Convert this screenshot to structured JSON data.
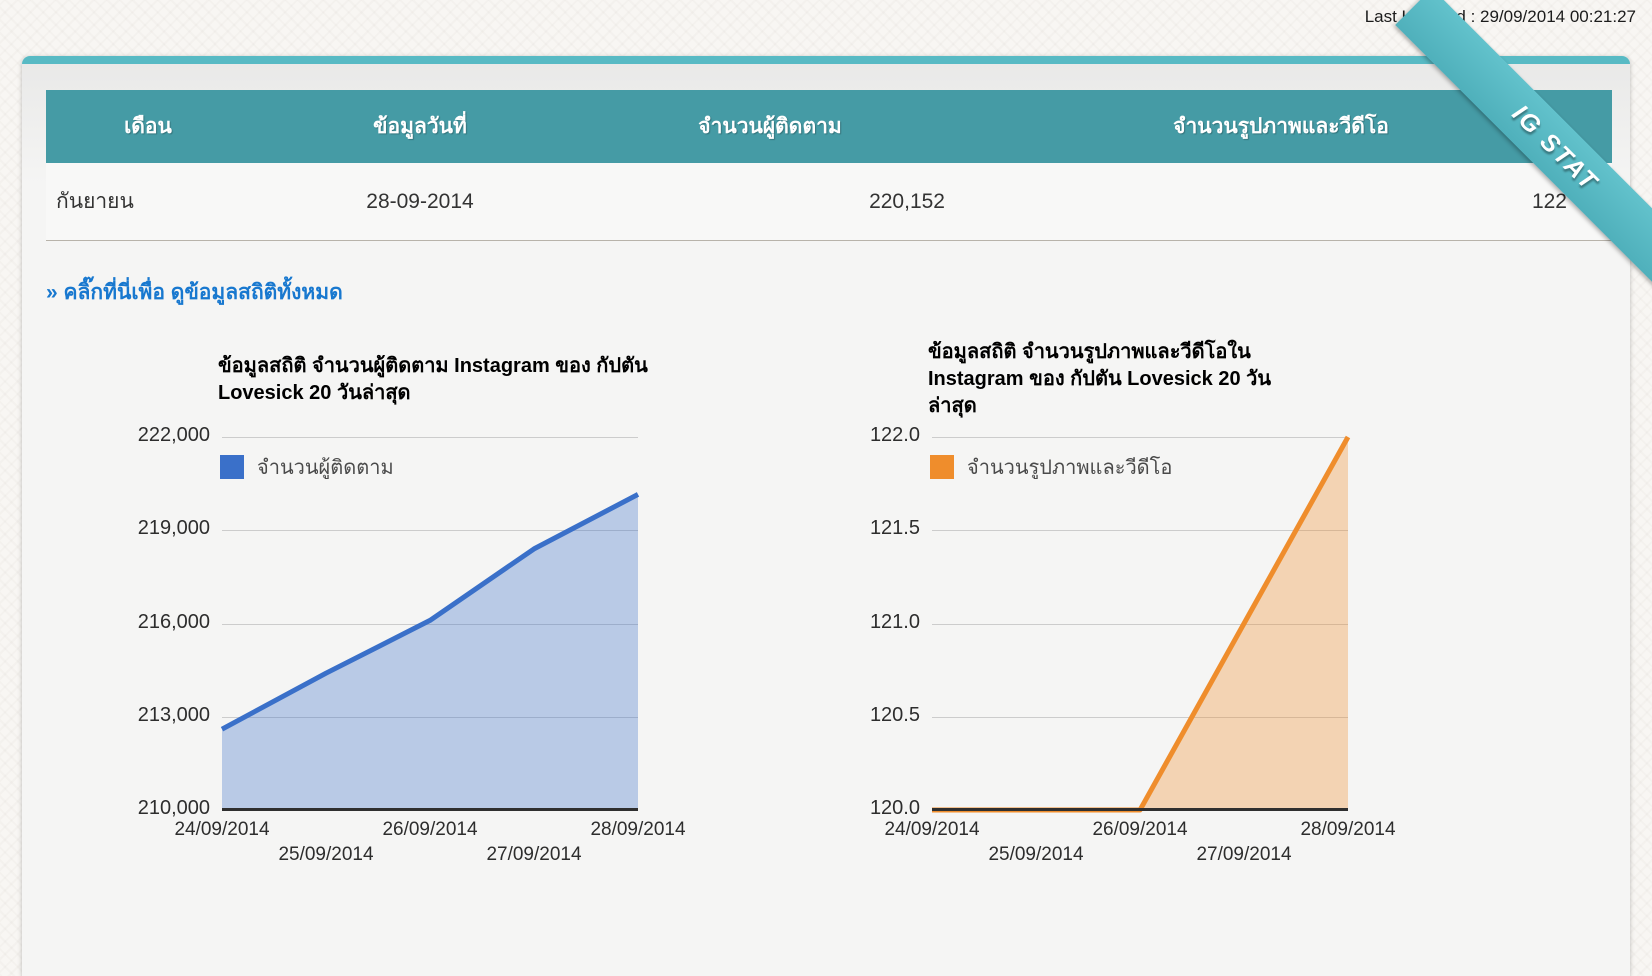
{
  "header": {
    "last_updated": "Last Updated : 29/09/2014 00:21:27"
  },
  "ribbon": {
    "label": "IG STAT"
  },
  "table": {
    "headers": [
      "เดือน",
      "ข้อมูลวันที่",
      "จำนวนผู้ติดตาม",
      "จำนวนรูปภาพและวีดีโอ"
    ],
    "row": {
      "month": "กันยายน",
      "date": "28-09-2014",
      "followers": "220,152",
      "media_count": "122"
    }
  },
  "link": {
    "label": "» คลิ๊กที่นี่เพื่อ ดูข้อมูลสถิติทั้งหมด"
  },
  "colors": {
    "accent_teal": "#459ba5",
    "ribbon_teal": "#58bac4",
    "link_blue": "#1878cf",
    "followers_line": "#3a70c9",
    "media_line": "#ef8d2c"
  },
  "chart_data": [
    {
      "type": "area",
      "title": "ข้อมูลสถิติ จำนวนผู้ติดตาม Instagram ของ กัปตัน Lovesick 20 วันล่าสุด",
      "legend": "จำนวนผู้ติดตาม",
      "legend_position": "top-left",
      "grid": true,
      "x": [
        "24/09/2014",
        "25/09/2014",
        "26/09/2014",
        "27/09/2014",
        "28/09/2014"
      ],
      "values": [
        212600,
        214400,
        216100,
        218400,
        220152
      ],
      "ylim": [
        210000,
        222000
      ],
      "yticks": [
        210000,
        213000,
        216000,
        219000,
        222000
      ],
      "ytick_labels": [
        "210,000",
        "213,000",
        "216,000",
        "219,000",
        "222,000"
      ],
      "line_color": "#3a70c9",
      "fill_color": "rgba(58,112,201,0.32)"
    },
    {
      "type": "area",
      "title": "ข้อมูลสถิติ จำนวนรูปภาพและวีดีโอใน Instagram ของ กัปตัน Lovesick 20 วันล่าสุด",
      "legend": "จำนวนรูปภาพและวีดีโอ",
      "legend_position": "top-left",
      "grid": true,
      "x": [
        "24/09/2014",
        "25/09/2014",
        "26/09/2014",
        "27/09/2014",
        "28/09/2014"
      ],
      "values": [
        120,
        120,
        120,
        121,
        122
      ],
      "ylim": [
        120,
        122
      ],
      "yticks": [
        120,
        120.5,
        121,
        121.5,
        122
      ],
      "ytick_labels": [
        "120.0",
        "120.5",
        "121.0",
        "121.5",
        "122.0"
      ],
      "line_color": "#ef8d2c",
      "fill_color": "rgba(239,141,44,0.32)"
    }
  ]
}
